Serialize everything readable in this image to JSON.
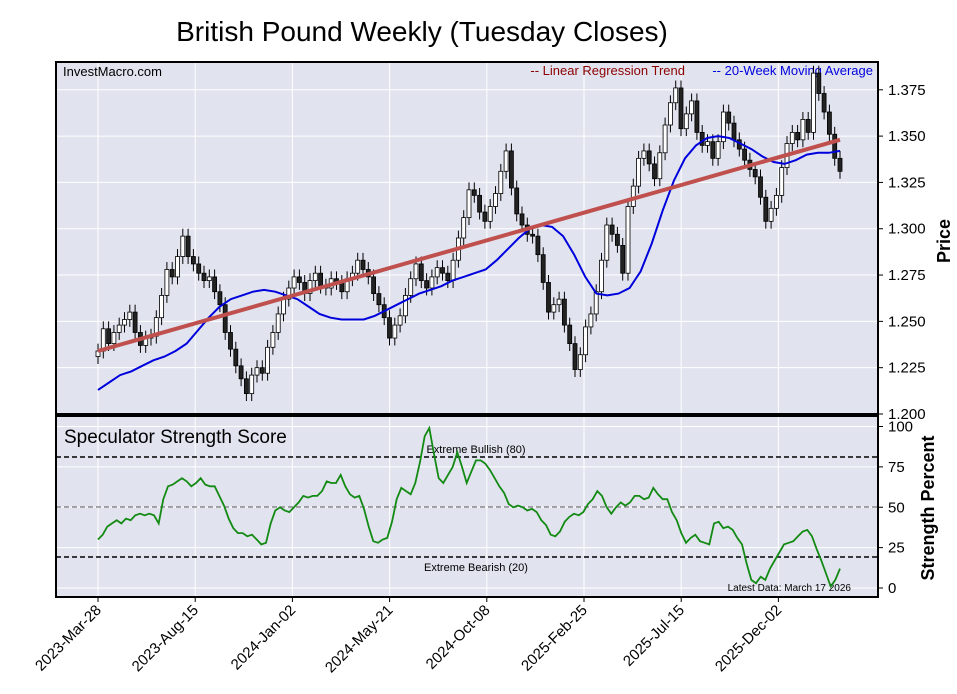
{
  "title": "British Pound Weekly (Tuesday Closes)",
  "source_label": "InvestMacro.com",
  "legend": {
    "regression_label": "-- Linear Regression Trend",
    "moving_average_label": "-- 20-Week Moving Average",
    "placement": "top-right"
  },
  "colors": {
    "panel_background": "#e1e4ef",
    "regression": "#c0504d",
    "moving_average": "#0000dd",
    "strength": "#138a13",
    "regression_label": "#8b0000",
    "moving_average_label": "#0000dd",
    "grid": "#ffffff"
  },
  "price_panel": {
    "ylabel": "Price",
    "ticks": [
      "1.200",
      "1.225",
      "1.250",
      "1.275",
      "1.300",
      "1.325",
      "1.350",
      "1.375"
    ]
  },
  "strength_panel": {
    "title": "Speculator Strength Score",
    "ylabel": "Strength Percent",
    "ticks": [
      "0",
      "25",
      "50",
      "75",
      "100"
    ],
    "extreme_bullish_label": "Extreme Bullish (80)",
    "extreme_bearish_label": "Extreme Bearish (20)",
    "latest_label": "Latest Data: March 17 2026"
  },
  "x_axis": {
    "ticks": [
      "2023-Mar-28",
      "2023-Aug-15",
      "2024-Jan-02",
      "2024-May-21",
      "2024-Oct-08",
      "2025-Feb-25",
      "2025-Jul-15",
      "2025-Dec-02"
    ]
  },
  "chart_data": [
    {
      "type": "candlestick",
      "title": "British Pound Weekly (Tuesday Closes)",
      "ylabel": "Price",
      "ylim": [
        1.2,
        1.39
      ],
      "x_start": "2023-Mar-28",
      "x_end": "2026-Mar-17",
      "x_step_weeks": 1,
      "grid": true,
      "closes": [
        1.234,
        1.246,
        1.238,
        1.244,
        1.248,
        1.251,
        1.255,
        1.244,
        1.237,
        1.241,
        1.242,
        1.252,
        1.264,
        1.278,
        1.274,
        1.285,
        1.296,
        1.285,
        1.281,
        1.276,
        1.272,
        1.274,
        1.266,
        1.259,
        1.244,
        1.235,
        1.226,
        1.219,
        1.211,
        1.221,
        1.225,
        1.222,
        1.236,
        1.244,
        1.254,
        1.262,
        1.268,
        1.274,
        1.271,
        1.265,
        1.272,
        1.276,
        1.269,
        1.268,
        1.273,
        1.271,
        1.266,
        1.273,
        1.276,
        1.283,
        1.278,
        1.274,
        1.265,
        1.259,
        1.252,
        1.241,
        1.248,
        1.253,
        1.264,
        1.273,
        1.281,
        1.272,
        1.268,
        1.274,
        1.279,
        1.276,
        1.272,
        1.283,
        1.295,
        1.306,
        1.321,
        1.318,
        1.309,
        1.304,
        1.312,
        1.319,
        1.331,
        1.342,
        1.322,
        1.308,
        1.302,
        1.297,
        1.296,
        1.286,
        1.271,
        1.255,
        1.259,
        1.262,
        1.248,
        1.238,
        1.224,
        1.232,
        1.247,
        1.254,
        1.266,
        1.283,
        1.302,
        1.297,
        1.291,
        1.276,
        1.312,
        1.323,
        1.338,
        1.342,
        1.335,
        1.327,
        1.341,
        1.356,
        1.368,
        1.376,
        1.354,
        1.362,
        1.369,
        1.352,
        1.345,
        1.347,
        1.338,
        1.347,
        1.363,
        1.357,
        1.348,
        1.343,
        1.337,
        1.332,
        1.328,
        1.317,
        1.304,
        1.311,
        1.318,
        1.333,
        1.346,
        1.352,
        1.348,
        1.359,
        1.352,
        1.384,
        1.373,
        1.363,
        1.351,
        1.338,
        1.331
      ],
      "regression_line": [
        {
          "x": "2023-Mar-28",
          "y": 1.234
        },
        {
          "x": "2026-Mar-17",
          "y": 1.348
        }
      ],
      "moving_average": [
        1.213,
        1.217,
        1.221,
        1.223,
        1.226,
        1.229,
        1.231,
        1.234,
        1.238,
        1.245,
        1.252,
        1.258,
        1.262,
        1.264,
        1.266,
        1.267,
        1.266,
        1.264,
        1.262,
        1.258,
        1.254,
        1.252,
        1.251,
        1.251,
        1.251,
        1.253,
        1.256,
        1.259,
        1.262,
        1.265,
        1.267,
        1.269,
        1.272,
        1.274,
        1.276,
        1.278,
        1.283,
        1.289,
        1.295,
        1.3,
        1.302,
        1.301,
        1.296,
        1.286,
        1.274,
        1.265,
        1.264,
        1.265,
        1.268,
        1.277,
        1.292,
        1.31,
        1.326,
        1.338,
        1.345,
        1.349,
        1.35,
        1.349,
        1.346,
        1.343,
        1.339,
        1.336,
        1.335,
        1.337,
        1.34,
        1.341,
        1.341,
        1.342
      ]
    },
    {
      "type": "line",
      "title": "Speculator Strength Score",
      "ylabel": "Strength Percent",
      "ylim": [
        0,
        100
      ],
      "x_start": "2023-Mar-28",
      "x_end": "2026-Mar-17",
      "reference_lines": [
        80,
        50,
        20
      ],
      "series": [
        {
          "values": [
            30,
            33,
            38,
            40,
            42,
            40,
            43,
            42,
            45,
            46,
            45,
            46,
            45,
            40,
            55,
            63,
            64,
            66,
            68,
            66,
            63,
            65,
            68,
            64,
            63,
            63,
            57,
            51,
            43,
            37,
            34,
            34,
            32,
            33,
            30,
            27,
            28,
            40,
            48,
            50,
            48,
            47,
            50,
            53,
            57,
            56,
            57,
            57,
            60,
            66,
            65,
            65,
            70,
            63,
            58,
            56,
            57,
            49,
            38,
            29,
            28,
            30,
            31,
            41,
            55,
            62,
            60,
            58,
            65,
            78,
            94,
            99,
            83,
            68,
            65,
            70,
            75,
            84,
            75,
            65,
            72,
            79,
            79,
            77,
            73,
            68,
            63,
            59,
            52,
            50,
            51,
            50,
            48,
            49,
            47,
            42,
            39,
            33,
            32,
            35,
            41,
            44,
            46,
            45,
            47,
            52,
            55,
            60,
            57,
            50,
            46,
            50,
            53,
            51,
            53,
            57,
            57,
            55,
            56,
            62,
            58,
            55,
            55,
            47,
            42,
            34,
            28,
            31,
            33,
            29,
            28,
            27,
            40,
            41,
            37,
            38,
            36,
            31,
            27,
            15,
            5,
            3,
            7,
            5,
            12,
            17,
            22,
            27,
            28,
            29,
            32,
            35,
            36,
            32,
            24,
            17,
            9,
            1,
            5,
            12
          ]
        }
      ]
    }
  ]
}
